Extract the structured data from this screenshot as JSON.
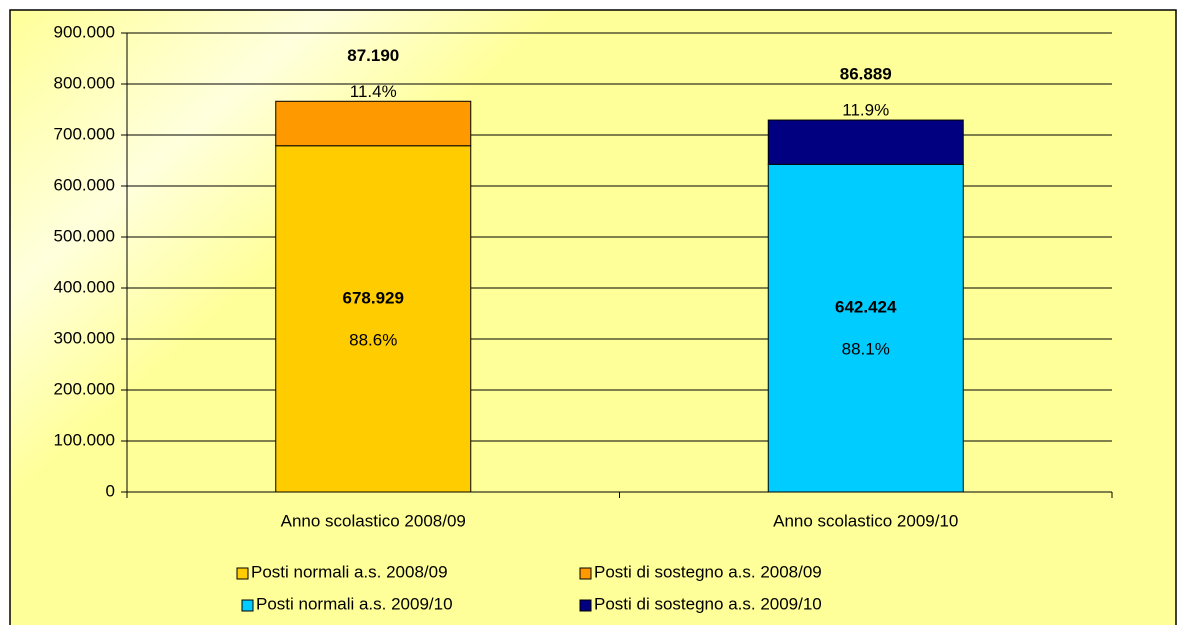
{
  "chart_data": {
    "type": "stacked_bar",
    "categories": [
      "Anno scolastico 2008/09",
      "Anno scolastico 2009/10"
    ],
    "series": [
      {
        "name": "Posti normali a.s. 2008/09",
        "color": "#ffcc00",
        "values": [
          678929,
          null
        ],
        "value_labels": [
          "678.929",
          null
        ],
        "percent_labels": [
          "88.6%",
          null
        ]
      },
      {
        "name": "Posti di sostegno a.s. 2008/09",
        "color": "#ff9900",
        "values": [
          87190,
          null
        ],
        "value_labels": [
          "87.190",
          null
        ],
        "percent_labels": [
          "11.4%",
          null
        ]
      },
      {
        "name": "Posti normali a.s. 2009/10",
        "color": "#00ccff",
        "values": [
          null,
          642424
        ],
        "value_labels": [
          null,
          "642.424"
        ],
        "percent_labels": [
          null,
          "88.1%"
        ]
      },
      {
        "name": "Posti di sostegno  a.s. 2009/10",
        "color": "#000080",
        "values": [
          null,
          86889
        ],
        "value_labels": [
          null,
          "86.889"
        ],
        "percent_labels": [
          null,
          "11.9%"
        ]
      }
    ],
    "ylim": [
      0,
      900000
    ],
    "yticks": [
      0,
      {
        "value": 100000,
        "label": "100.000"
      },
      {
        "value": 200000,
        "label": "200.000"
      },
      {
        "value": 300000,
        "label": "300.000"
      },
      {
        "value": 400000,
        "label": "400.000"
      },
      {
        "value": 500000,
        "label": "500.000"
      },
      {
        "value": 600000,
        "label": "600.000"
      },
      {
        "value": 700000,
        "label": "700.000"
      },
      {
        "value": 800000,
        "label": "800.000"
      },
      {
        "value": 900000,
        "label": "900.000"
      }
    ],
    "grid": true,
    "legend": "bottom"
  }
}
